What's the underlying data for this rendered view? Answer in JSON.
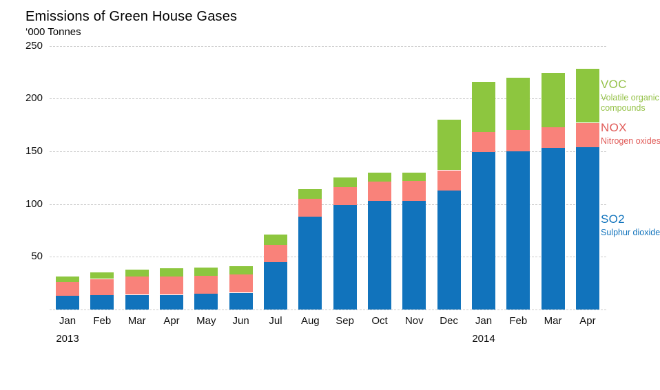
{
  "title": "Emissions of Green House Gases",
  "subtitle": "‘000 Tonnes",
  "chart_data": {
    "type": "bar",
    "stacked": true,
    "title": "Emissions of Green House Gases",
    "ylabel": "‘000 Tonnes",
    "xlabel": "",
    "ylim": [
      0,
      250
    ],
    "y_ticks": [
      50,
      100,
      150,
      200,
      250
    ],
    "grid": "horizontal dashed, zero-baseline dashed",
    "legend_position": "right",
    "categories": [
      "Jan",
      "Feb",
      "Mar",
      "Apr",
      "May",
      "Jun",
      "Jul",
      "Aug",
      "Sep",
      "Oct",
      "Nov",
      "Dec",
      "Jan",
      "Feb",
      "Mar",
      "Apr"
    ],
    "year_markers": [
      {
        "index": 0,
        "label": "2013"
      },
      {
        "index": 12,
        "label": "2014"
      }
    ],
    "series": [
      {
        "name": "SO2",
        "long_name": "Sulphur dioxide",
        "color": "#1173BC",
        "label_color": "#1173BC",
        "values": [
          13,
          14,
          14,
          14,
          15,
          16,
          45,
          88,
          99,
          103,
          103,
          113,
          149,
          150,
          153,
          154
        ]
      },
      {
        "name": "NOX",
        "long_name": "Nitrogen oxides",
        "color": "#F9827A",
        "label_color": "#E05A57",
        "values": [
          13,
          15,
          17,
          17,
          17,
          17,
          16,
          17,
          17,
          18,
          19,
          19,
          19,
          20,
          20,
          23
        ]
      },
      {
        "name": "VOC",
        "long_name": "Volatile organic compounds",
        "color": "#8DC63F",
        "label_color": "#94C147",
        "values": [
          5,
          6,
          7,
          8,
          8,
          8,
          10,
          9,
          9,
          9,
          8,
          48,
          48,
          50,
          51,
          51
        ]
      }
    ]
  },
  "colors": {
    "background": "#ffffff",
    "gridline": "#cccccc",
    "axis_text": "#111111",
    "title_text": "#000000"
  }
}
